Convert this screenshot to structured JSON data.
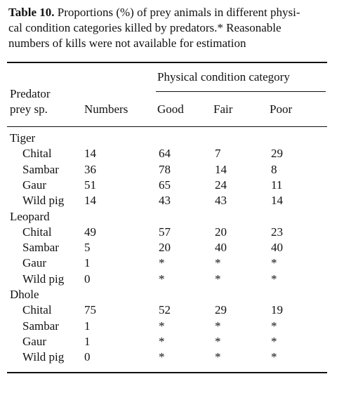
{
  "caption": {
    "label": "Table 10.",
    "lines": [
      "Proportions (%) of prey animals in different physi-",
      "cal condition categories killed by predators.* Reasonable",
      "numbers of kills were not available for estimation"
    ]
  },
  "table": {
    "spanner": "Physical condition category",
    "columns": [
      [
        "Predator",
        "prey sp."
      ],
      "Numbers",
      "Good",
      "Fair",
      "Poor"
    ],
    "groups": [
      {
        "name": "Tiger",
        "rows": [
          [
            "Chital",
            14,
            64,
            7,
            29
          ],
          [
            "Sambar",
            36,
            78,
            14,
            8
          ],
          [
            "Gaur",
            51,
            65,
            24,
            11
          ],
          [
            "Wild pig",
            14,
            43,
            43,
            14
          ]
        ]
      },
      {
        "name": "Leopard",
        "rows": [
          [
            "Chital",
            49,
            57,
            20,
            23
          ],
          [
            "Sambar",
            5,
            20,
            40,
            40
          ],
          [
            "Gaur",
            1,
            "*",
            "*",
            "*"
          ],
          [
            "Wild pig",
            0,
            "*",
            "*",
            "*"
          ]
        ]
      },
      {
        "name": "Dhole",
        "rows": [
          [
            "Chital",
            75,
            52,
            29,
            19
          ],
          [
            "Sambar",
            1,
            "*",
            "*",
            "*"
          ],
          [
            "Gaur",
            1,
            "*",
            "*",
            "*"
          ],
          [
            "Wild pig",
            0,
            "*",
            "*",
            "*"
          ]
        ]
      }
    ]
  }
}
